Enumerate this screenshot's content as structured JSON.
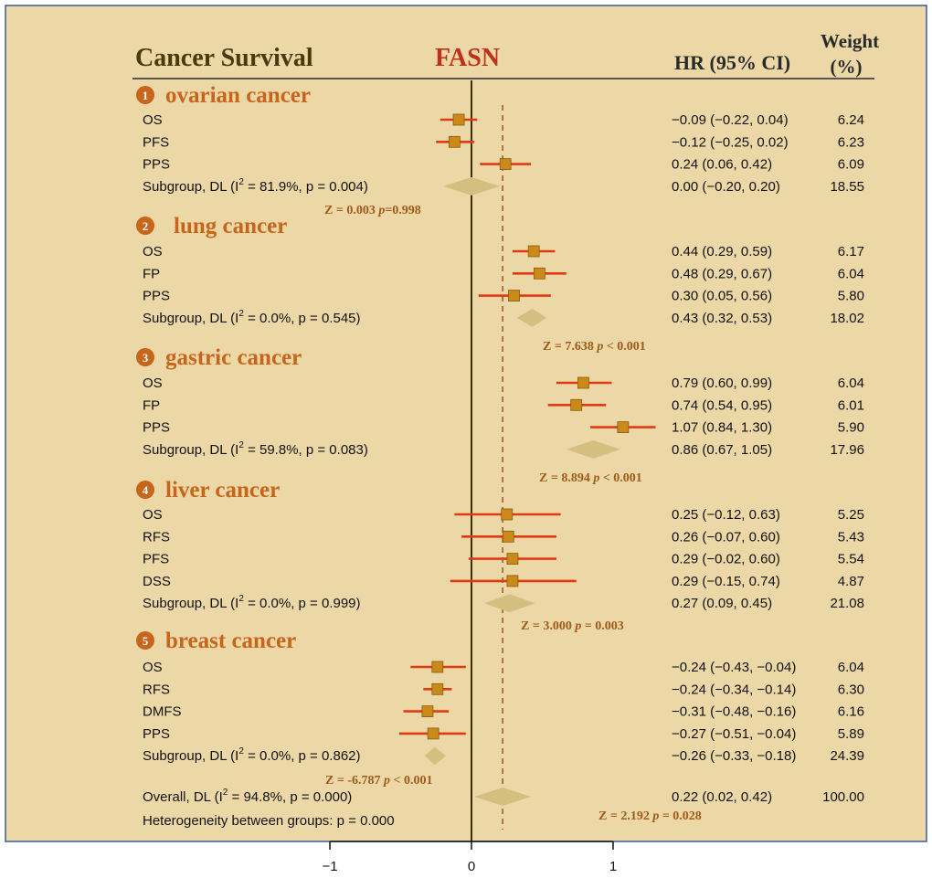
{
  "colors": {
    "panel_bg": "#ecd8a6",
    "panel_border": "#3a5a9a",
    "title": "#4a3a10",
    "gene": "#c0301a",
    "group_title": "#c8651c",
    "z_text": "#a05a1a",
    "ci_line": "#e03a10",
    "point_fill": "#c98a1a",
    "diamond_fill": "#d4bf80",
    "ref_line": "#3a2a05",
    "dashed_line": "#a05a2a"
  },
  "header": {
    "title": "Cancer Survival",
    "gene": "FASN",
    "hr_label": "HR (95% CI)",
    "weight_label_line1": "Weight",
    "weight_label_line2": "(%)"
  },
  "chart_data": {
    "type": "forest",
    "xaxis_ticks": [
      "−1",
      "0",
      "1"
    ],
    "xlim": [
      -1,
      1
    ],
    "overall_effect_line": 0.22,
    "groups": [
      {
        "number": "1",
        "name": "ovarian cancer",
        "rows": [
          {
            "label": "OS",
            "hr": -0.09,
            "lo": -0.22,
            "hi": 0.04,
            "ci_text": "−0.09 (−0.22, 0.04)",
            "weight": "6.24"
          },
          {
            "label": "PFS",
            "hr": -0.12,
            "lo": -0.25,
            "hi": 0.02,
            "ci_text": "−0.12 (−0.25, 0.02)",
            "weight": "6.23"
          },
          {
            "label": "PPS",
            "hr": 0.24,
            "lo": 0.06,
            "hi": 0.42,
            "ci_text": "0.24 (0.06, 0.42)",
            "weight": "6.09"
          }
        ],
        "subgroup": {
          "label_pre": "Subgroup, DL (I",
          "label_sup": "2",
          "label_post": " = 81.9%, p = 0.004)",
          "hr": 0.0,
          "lo": -0.2,
          "hi": 0.2,
          "ci_text": "0.00 (−0.20, 0.20)",
          "weight": "18.55"
        },
        "z_label": "Z = 0.003",
        "p_label_italic": "p",
        "p_label_rest": "=0.998"
      },
      {
        "number": "2",
        "name": "lung cancer",
        "rows": [
          {
            "label": "OS",
            "hr": 0.44,
            "lo": 0.29,
            "hi": 0.59,
            "ci_text": "0.44 (0.29, 0.59)",
            "weight": "6.17"
          },
          {
            "label": "FP",
            "hr": 0.48,
            "lo": 0.29,
            "hi": 0.67,
            "ci_text": "0.48 (0.29, 0.67)",
            "weight": "6.04"
          },
          {
            "label": "PPS",
            "hr": 0.3,
            "lo": 0.05,
            "hi": 0.56,
            "ci_text": "0.30 (0.05, 0.56)",
            "weight": "5.80"
          }
        ],
        "subgroup": {
          "label_pre": "Subgroup, DL (I",
          "label_sup": "2",
          "label_post": " = 0.0%, p = 0.545)",
          "hr": 0.43,
          "lo": 0.32,
          "hi": 0.53,
          "ci_text": "0.43 (0.32, 0.53)",
          "weight": "18.02"
        },
        "z_label": "Z = 7.638",
        "p_label_italic": "p",
        "p_label_rest": " <  0.001"
      },
      {
        "number": "3",
        "name": "gastric cancer",
        "rows": [
          {
            "label": "OS",
            "hr": 0.79,
            "lo": 0.6,
            "hi": 0.99,
            "ci_text": "0.79 (0.60, 0.99)",
            "weight": "6.04"
          },
          {
            "label": "FP",
            "hr": 0.74,
            "lo": 0.54,
            "hi": 0.95,
            "ci_text": "0.74 (0.54, 0.95)",
            "weight": "6.01"
          },
          {
            "label": "PPS",
            "hr": 1.07,
            "lo": 0.84,
            "hi": 1.3,
            "ci_text": "1.07 (0.84, 1.30)",
            "weight": "5.90"
          }
        ],
        "subgroup": {
          "label_pre": "Subgroup, DL (I",
          "label_sup": "2",
          "label_post": " = 59.8%, p = 0.083)",
          "hr": 0.86,
          "lo": 0.67,
          "hi": 1.05,
          "ci_text": "0.86 (0.67, 1.05)",
          "weight": "17.96"
        },
        "z_label": "Z = 8.894",
        "p_label_italic": "p",
        "p_label_rest": " < 0.001"
      },
      {
        "number": "4",
        "name": "liver cancer",
        "rows": [
          {
            "label": "OS",
            "hr": 0.25,
            "lo": -0.12,
            "hi": 0.63,
            "ci_text": "0.25 (−0.12, 0.63)",
            "weight": "5.25"
          },
          {
            "label": "RFS",
            "hr": 0.26,
            "lo": -0.07,
            "hi": 0.6,
            "ci_text": "0.26 (−0.07, 0.60)",
            "weight": "5.43"
          },
          {
            "label": "PFS",
            "hr": 0.29,
            "lo": -0.02,
            "hi": 0.6,
            "ci_text": "0.29 (−0.02, 0.60)",
            "weight": "5.54"
          },
          {
            "label": "DSS",
            "hr": 0.29,
            "lo": -0.15,
            "hi": 0.74,
            "ci_text": "0.29 (−0.15, 0.74)",
            "weight": "4.87"
          }
        ],
        "subgroup": {
          "label_pre": "Subgroup, DL (I",
          "label_sup": "2",
          "label_post": " = 0.0%, p = 0.999)",
          "hr": 0.27,
          "lo": 0.09,
          "hi": 0.45,
          "ci_text": "0.27 (0.09, 0.45)",
          "weight": "21.08"
        },
        "z_label": "Z = 3.000",
        "p_label_italic": "p",
        "p_label_rest": " = 0.003"
      },
      {
        "number": "5",
        "name": "breast cancer",
        "rows": [
          {
            "label": "OS",
            "hr": -0.24,
            "lo": -0.43,
            "hi": -0.04,
            "ci_text": "−0.24 (−0.43, −0.04)",
            "weight": "6.04"
          },
          {
            "label": "RFS",
            "hr": -0.24,
            "lo": -0.34,
            "hi": -0.14,
            "ci_text": "−0.24 (−0.34, −0.14)",
            "weight": "6.30"
          },
          {
            "label": "DMFS",
            "hr": -0.31,
            "lo": -0.48,
            "hi": -0.16,
            "ci_text": "−0.31 (−0.48, −0.16)",
            "weight": "6.16"
          },
          {
            "label": "PPS",
            "hr": -0.27,
            "lo": -0.51,
            "hi": -0.04,
            "ci_text": "−0.27 (−0.51, −0.04)",
            "weight": "5.89"
          }
        ],
        "subgroup": {
          "label_pre": "Subgroup, DL (I",
          "label_sup": "2",
          "label_post": " = 0.0%, p = 0.862)",
          "hr": -0.26,
          "lo": -0.33,
          "hi": -0.18,
          "ci_text": "−0.26 (−0.33, −0.18)",
          "weight": "24.39"
        },
        "z_label": "Z = -6.787",
        "p_label_italic": "p",
        "p_label_rest": " < 0.001"
      }
    ],
    "overall": {
      "label_pre": "Overall, DL (I",
      "label_sup": "2",
      "label_post": " = 94.8%, p = 0.000)",
      "hr": 0.22,
      "lo": 0.02,
      "hi": 0.42,
      "ci_text": "0.22 (0.02, 0.42)",
      "weight": "100.00",
      "z_label": "Z = 2.192",
      "p_label_italic": "p",
      "p_label_rest": " = 0.028"
    },
    "heterogeneity_text": "Heterogeneity between groups: p = 0.000"
  }
}
